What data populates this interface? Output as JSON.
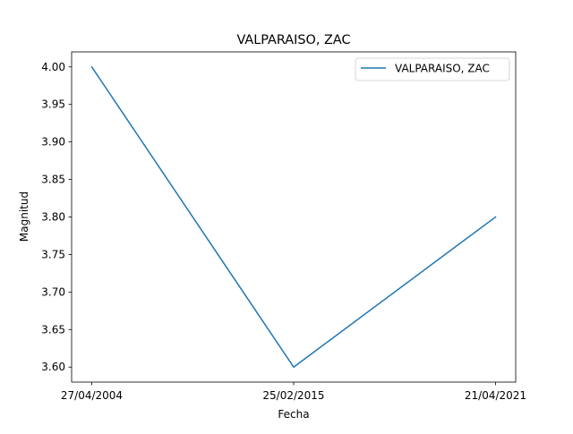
{
  "chart_data": {
    "type": "line",
    "title": "VALPARAISO, ZAC",
    "xlabel": "Fecha",
    "ylabel": "Magnitud",
    "categories": [
      "27/04/2004",
      "25/02/2015",
      "21/04/2021"
    ],
    "series": [
      {
        "name": "VALPARAISO, ZAC",
        "values": [
          4.0,
          3.6,
          3.8
        ],
        "color": "#1f77b4"
      }
    ],
    "yticks": [
      "3.60",
      "3.65",
      "3.70",
      "3.75",
      "3.80",
      "3.85",
      "3.90",
      "3.95",
      "4.00"
    ],
    "ylim": [
      3.58,
      4.02
    ],
    "grid": false,
    "legend": "top-right"
  }
}
